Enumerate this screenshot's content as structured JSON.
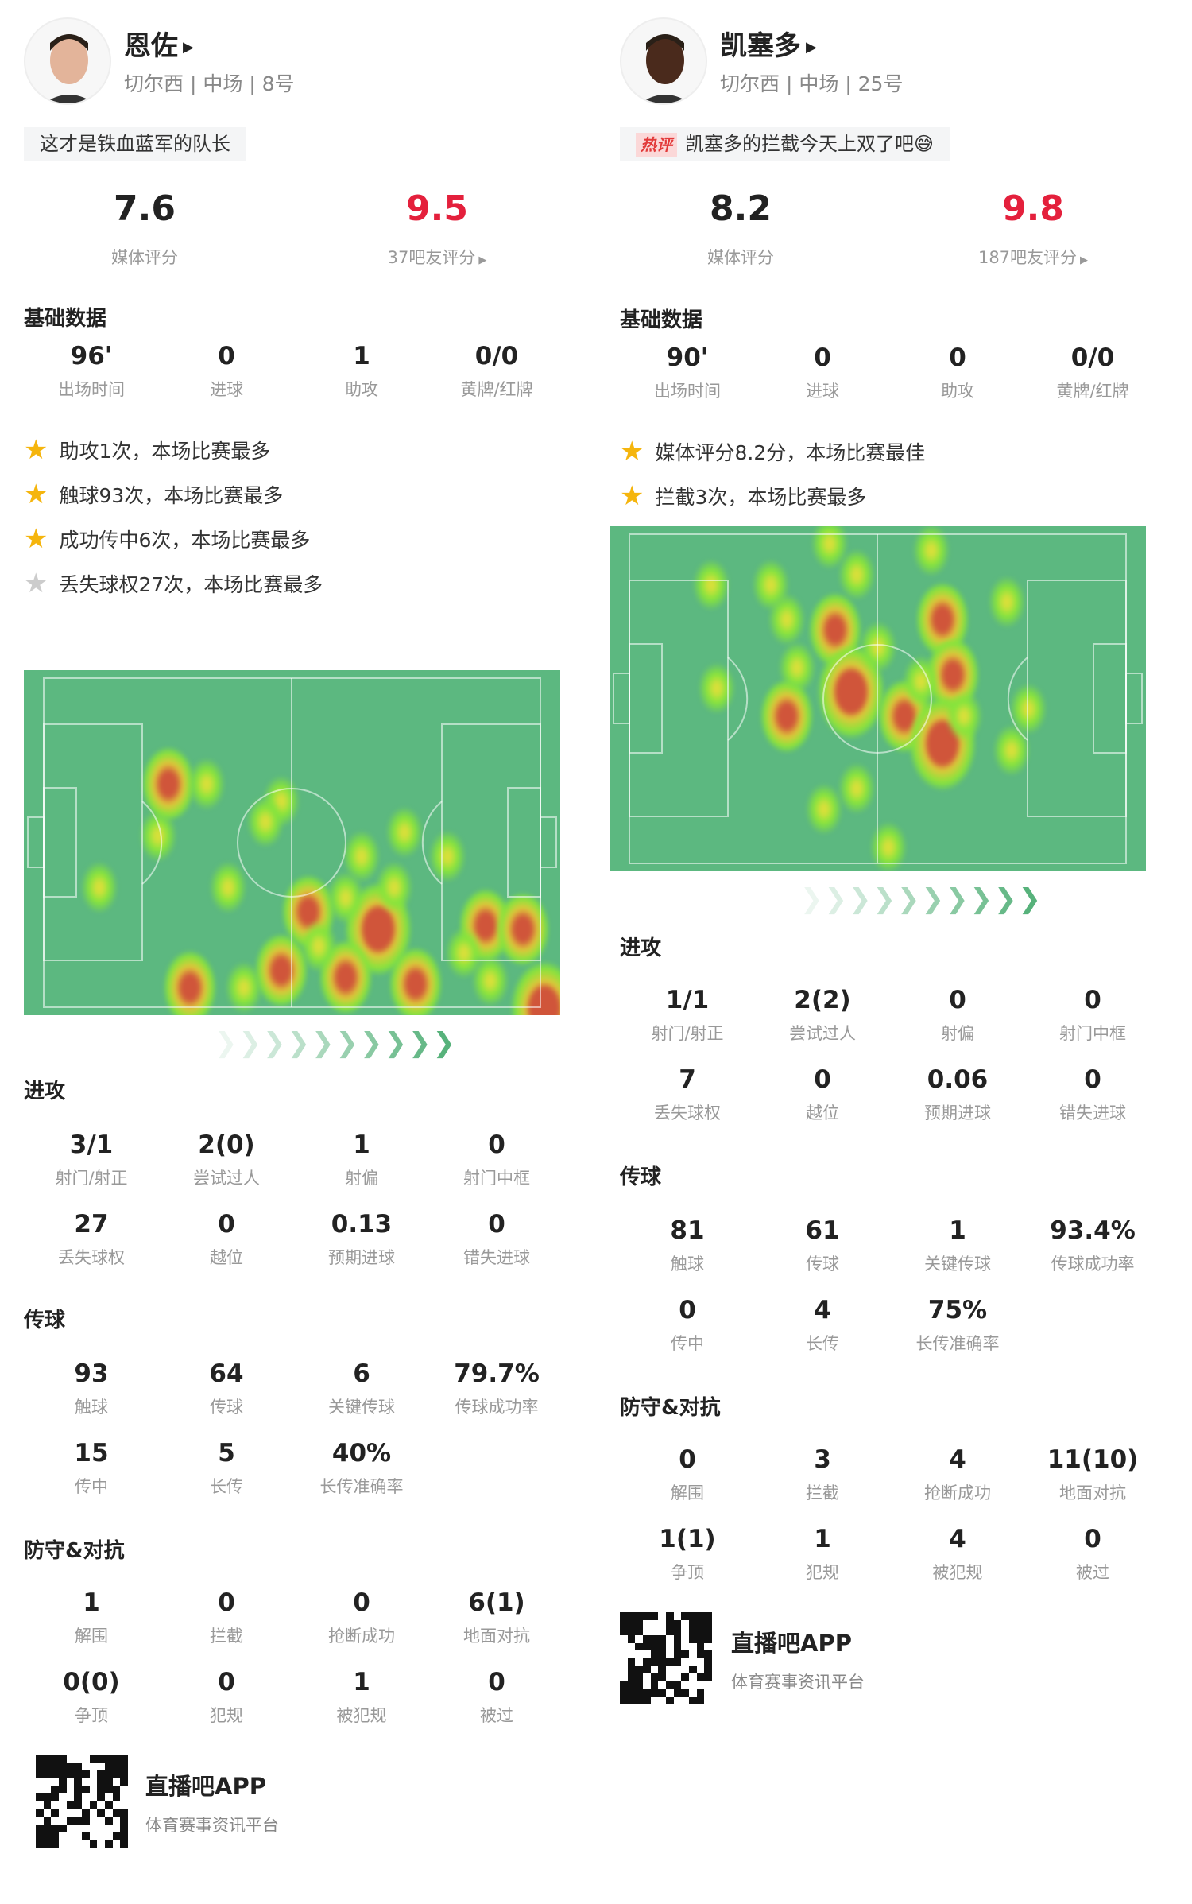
{
  "colors": {
    "accent_red": "#e4203c",
    "field": "#5cb880",
    "star": "#f5b50d"
  },
  "players": [
    {
      "name": "恩佐",
      "subtitle": "切尔西 | 中场 | 8号",
      "comment": {
        "badge": "",
        "text": "这才是铁血蓝军的队长"
      },
      "media_rating": "7.6",
      "media_label": "媒体评分",
      "fan_rating": "9.5",
      "fan_label": "37吧友评分",
      "basic_title": "基础数据",
      "basic": [
        {
          "v": "96'",
          "l": "出场时间"
        },
        {
          "v": "0",
          "l": "进球"
        },
        {
          "v": "1",
          "l": "助攻"
        },
        {
          "v": "0/0",
          "l": "黄牌/红牌"
        }
      ],
      "highlights": [
        {
          "text": "助攻1次，本场比赛最多",
          "icon": "star-gold"
        },
        {
          "text": "触球93次，本场比赛最多",
          "icon": "star-gold"
        },
        {
          "text": "成功传中6次，本场比赛最多",
          "icon": "star-gold"
        },
        {
          "text": "丢失球权27次，本场比赛最多",
          "icon": "star-grey"
        }
      ],
      "attack_title": "进攻",
      "attack": [
        {
          "v": "3/1",
          "l": "射门/射正"
        },
        {
          "v": "2(0)",
          "l": "尝试过人"
        },
        {
          "v": "1",
          "l": "射偏"
        },
        {
          "v": "0",
          "l": "射门中框"
        },
        {
          "v": "27",
          "l": "丢失球权"
        },
        {
          "v": "0",
          "l": "越位"
        },
        {
          "v": "0.13",
          "l": "预期进球"
        },
        {
          "v": "0",
          "l": "错失进球"
        }
      ],
      "pass_title": "传球",
      "pass": [
        {
          "v": "93",
          "l": "触球"
        },
        {
          "v": "64",
          "l": "传球"
        },
        {
          "v": "6",
          "l": "关键传球"
        },
        {
          "v": "79.7%",
          "l": "传球成功率"
        },
        {
          "v": "15",
          "l": "传中"
        },
        {
          "v": "5",
          "l": "长传"
        },
        {
          "v": "40%",
          "l": "长传准确率"
        }
      ],
      "defense_title": "防守&对抗",
      "defense": [
        {
          "v": "1",
          "l": "解围"
        },
        {
          "v": "0",
          "l": "拦截"
        },
        {
          "v": "0",
          "l": "抢断成功"
        },
        {
          "v": "6(1)",
          "l": "地面对抗"
        },
        {
          "v": "0(0)",
          "l": "争顶"
        },
        {
          "v": "0",
          "l": "犯规"
        },
        {
          "v": "1",
          "l": "被犯规"
        },
        {
          "v": "0",
          "l": "被过"
        }
      ],
      "app_name": "直播吧APP",
      "app_desc": "体育赛事资讯平台"
    },
    {
      "name": "凯塞多",
      "subtitle": "切尔西 | 中场 | 25号",
      "comment": {
        "badge": "热评",
        "text": "凯塞多的拦截今天上双了吧😅"
      },
      "media_rating": "8.2",
      "media_label": "媒体评分",
      "fan_rating": "9.8",
      "fan_label": "187吧友评分",
      "basic_title": "基础数据",
      "basic": [
        {
          "v": "90'",
          "l": "出场时间"
        },
        {
          "v": "0",
          "l": "进球"
        },
        {
          "v": "0",
          "l": "助攻"
        },
        {
          "v": "0/0",
          "l": "黄牌/红牌"
        }
      ],
      "highlights": [
        {
          "text": "媒体评分8.2分，本场比赛最佳",
          "icon": "star-gold"
        },
        {
          "text": "拦截3次，本场比赛最多",
          "icon": "star-gold"
        }
      ],
      "attack_title": "进攻",
      "attack": [
        {
          "v": "1/1",
          "l": "射门/射正"
        },
        {
          "v": "2(2)",
          "l": "尝试过人"
        },
        {
          "v": "0",
          "l": "射偏"
        },
        {
          "v": "0",
          "l": "射门中框"
        },
        {
          "v": "7",
          "l": "丢失球权"
        },
        {
          "v": "0",
          "l": "越位"
        },
        {
          "v": "0.06",
          "l": "预期进球"
        },
        {
          "v": "0",
          "l": "错失进球"
        }
      ],
      "pass_title": "传球",
      "pass": [
        {
          "v": "81",
          "l": "触球"
        },
        {
          "v": "61",
          "l": "传球"
        },
        {
          "v": "1",
          "l": "关键传球"
        },
        {
          "v": "93.4%",
          "l": "传球成功率"
        },
        {
          "v": "0",
          "l": "传中"
        },
        {
          "v": "4",
          "l": "长传"
        },
        {
          "v": "75%",
          "l": "长传准确率"
        }
      ],
      "defense_title": "防守&对抗",
      "defense": [
        {
          "v": "0",
          "l": "解围"
        },
        {
          "v": "3",
          "l": "拦截"
        },
        {
          "v": "4",
          "l": "抢断成功"
        },
        {
          "v": "11(10)",
          "l": "地面对抗"
        },
        {
          "v": "1(1)",
          "l": "争顶"
        },
        {
          "v": "1",
          "l": "犯规"
        },
        {
          "v": "4",
          "l": "被犯规"
        },
        {
          "v": "0",
          "l": "被过"
        }
      ],
      "app_name": "直播吧APP",
      "app_desc": "体育赛事资讯平台"
    }
  ]
}
